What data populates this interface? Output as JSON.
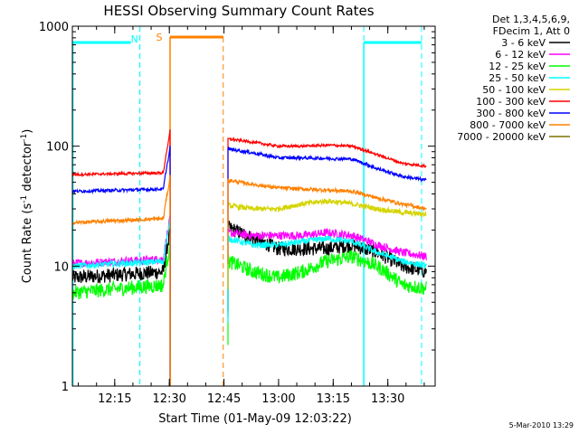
{
  "chart_data": {
    "type": "line",
    "title": "HESSI Observing Summary Count Rates",
    "xlabel": "Start Time (01-May-09 12:03:22)",
    "ylabel_parts": {
      "pre": "Count Rate (s",
      "sup1": "-1",
      "mid": " detector",
      "sup2": "-1",
      "post": ")"
    },
    "x_ticks": [
      "12:15",
      "12:30",
      "12:45",
      "13:00",
      "13:15",
      "13:30"
    ],
    "x_tick_minutes": [
      735,
      750,
      765,
      780,
      795,
      810
    ],
    "xlim_minutes": [
      723.37,
      823
    ],
    "y_scale": "log",
    "ylim": [
      1,
      1000
    ],
    "y_ticks": [
      "1",
      "10",
      "100",
      "1000"
    ],
    "y_tick_values": [
      1,
      10,
      100,
      1000
    ],
    "legend_header": [
      "Det 1,3,4,5,6,9,",
      "FDecim 1, Att 0"
    ],
    "legend_position": "right",
    "series": [
      {
        "name": "3 - 6 keV",
        "color": "#000000",
        "pre": [
          8,
          8.5,
          9
        ],
        "post": [
          21,
          17,
          14,
          14,
          14,
          15,
          13,
          10,
          9
        ],
        "noise": 0.14
      },
      {
        "name": "6 - 12 keV",
        "color": "#ff00ff",
        "pre": [
          10.5,
          11,
          11.5
        ],
        "post": [
          19,
          18,
          18,
          18,
          19,
          18,
          15,
          13,
          12
        ],
        "noise": 0.08
      },
      {
        "name": "12 - 25 keV",
        "color": "#00ff00",
        "pre": [
          6,
          6.5,
          7
        ],
        "post": [
          11,
          9,
          8,
          9,
          11,
          12,
          10,
          7,
          6.5
        ],
        "noise": 0.14
      },
      {
        "name": "25 - 50 keV",
        "color": "#00ffff",
        "pre": [
          10,
          10.5,
          11
        ],
        "post": [
          17,
          15,
          15,
          16,
          17,
          16,
          13,
          11,
          10
        ],
        "noise": 0.06
      },
      {
        "name": "50 - 100 keV",
        "color": "#d4d400",
        "pre": [],
        "post": [
          32,
          30,
          30,
          33,
          35,
          33,
          30,
          28,
          27
        ],
        "noise": 0.05
      },
      {
        "name": "100 - 300 keV",
        "color": "#ff0000",
        "pre": [
          58,
          59,
          60
        ],
        "post": [
          115,
          108,
          100,
          100,
          102,
          100,
          85,
          72,
          68
        ],
        "noise": 0.025
      },
      {
        "name": "300 - 800 keV",
        "color": "#0000ff",
        "pre": [
          42,
          43,
          44
        ],
        "post": [
          95,
          88,
          80,
          80,
          79,
          78,
          65,
          56,
          52
        ],
        "noise": 0.03
      },
      {
        "name": "800 - 7000 keV",
        "color": "#ff8000",
        "pre": [
          23,
          24,
          25
        ],
        "post": [
          52,
          48,
          45,
          44,
          43,
          42,
          37,
          33,
          30
        ],
        "noise": 0.035
      },
      {
        "name": "7000 - 20000 keV",
        "color": "#807000",
        "pre": [],
        "post": [],
        "noise": 0
      }
    ],
    "intervals": {
      "N": {
        "label": "N",
        "color": "#00ffff",
        "start_min": 741.9,
        "end_min": 803.4
      },
      "S": {
        "label": "S",
        "color": "#ff8000",
        "start_min": 750.2,
        "end_min": 764.8
      }
    },
    "flare_peak_min": 750.2,
    "data_gap_min": [
      750.3,
      766.1
    ]
  },
  "timestamp": "5-Mar-2010 13:29"
}
